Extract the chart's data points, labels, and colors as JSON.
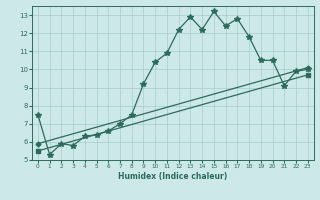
{
  "xlabel": "Humidex (Indice chaleur)",
  "bg_color": "#cce8e8",
  "grid_color": "#a8cccc",
  "line_color": "#2d6b5e",
  "xlim": [
    -0.5,
    23.5
  ],
  "ylim": [
    5,
    13.5
  ],
  "xticks": [
    0,
    1,
    2,
    3,
    4,
    5,
    6,
    7,
    8,
    9,
    10,
    11,
    12,
    13,
    14,
    15,
    16,
    17,
    18,
    19,
    20,
    21,
    22,
    23
  ],
  "yticks": [
    5,
    6,
    7,
    8,
    9,
    10,
    11,
    12,
    13
  ],
  "series1_x": [
    0,
    1,
    2,
    3,
    4,
    5,
    6,
    7,
    8,
    9,
    10,
    11,
    12,
    13,
    14,
    15,
    16,
    17,
    18,
    19,
    20,
    21,
    22,
    23
  ],
  "series1_y": [
    7.5,
    5.3,
    5.9,
    5.8,
    6.3,
    6.4,
    6.6,
    7.0,
    7.5,
    9.2,
    10.4,
    10.9,
    12.2,
    12.9,
    12.2,
    13.2,
    12.4,
    12.8,
    11.8,
    10.5,
    10.5,
    9.1,
    9.9,
    10.0
  ],
  "series2_x": [
    0,
    23
  ],
  "series2_y": [
    5.9,
    10.1
  ],
  "series3_x": [
    0,
    23
  ],
  "series3_y": [
    5.5,
    9.7
  ],
  "lw": 0.9,
  "marker_size": 2.5,
  "xlabel_fontsize": 5.5,
  "tick_fontsize": 4.5
}
